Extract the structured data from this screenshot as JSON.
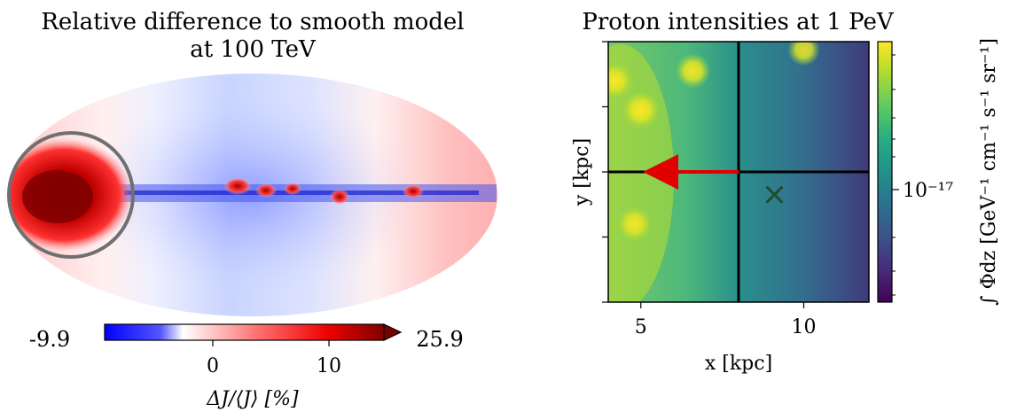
{
  "chart_data": [
    {
      "type": "heatmap",
      "projection": "mollweide",
      "title_line1": "Relative difference to smooth model",
      "title_line2": "at 100 TeV",
      "colormap": "seismic",
      "colorbar": {
        "label": "ΔJ/⟨J⟩ [%]",
        "min": -9.9,
        "max": 25.9,
        "min_label": "-9.9",
        "max_label": "25.9",
        "extend": "max",
        "ticks": [
          0,
          10
        ],
        "tick_labels": [
          "0",
          "10"
        ]
      },
      "features": [
        {
          "name": "circled region",
          "lon": 160,
          "lat": 0,
          "level": 25.9
        },
        {
          "name": "galactic plane hot spot",
          "lon": -100,
          "lat": 0,
          "level": 20
        }
      ],
      "colors": {
        "negative": "#0000ff",
        "positive": "#ff0000",
        "extend": "#7a0000",
        "circle": "#707070"
      }
    },
    {
      "type": "heatmap",
      "title": "Proton intensities at 1 PeV",
      "xlabel": "x [kpc]",
      "ylabel": "y [kpc]",
      "xlim": [
        4,
        12
      ],
      "ylim": [
        -4,
        4
      ],
      "xticks": [
        5,
        10
      ],
      "colormap": "viridis",
      "colorbar": {
        "label": "∫ Φdz [GeV⁻¹ cm⁻¹ s⁻¹ sr⁻¹]",
        "scale": "log",
        "tick_label": "10⁻¹⁷"
      },
      "lines": {
        "vertical_x": 8,
        "horizontal_y": 0
      },
      "arrow": {
        "from": [
          8,
          0
        ],
        "to": [
          5.5,
          0
        ],
        "color": "#e00000"
      },
      "marker": {
        "symbol": "x",
        "x": 9.1,
        "y": -0.7
      },
      "sources": [
        {
          "x": 4.2,
          "y": 2.8,
          "level": 0.95
        },
        {
          "x": 5.0,
          "y": 1.9,
          "level": 1.0
        },
        {
          "x": 6.6,
          "y": 3.1,
          "level": 0.82
        },
        {
          "x": 10.0,
          "y": 3.75,
          "level": 0.7
        },
        {
          "x": 4.8,
          "y": -1.6,
          "level": 0.85
        }
      ]
    }
  ]
}
